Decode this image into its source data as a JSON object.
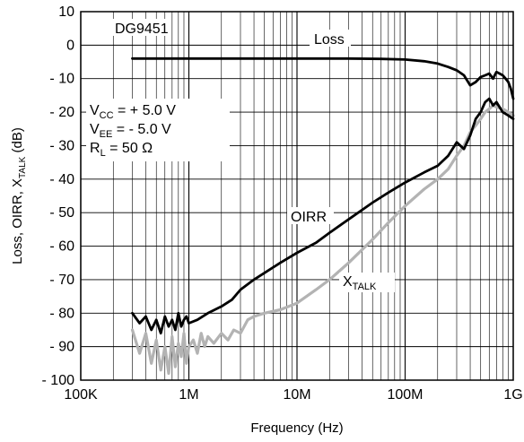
{
  "chart_data": {
    "type": "line",
    "title": "DG9451",
    "xlabel": "Frequency (Hz)",
    "ylabel": "Loss, OIRR, XTALK (dB)",
    "ylabel_parts": [
      "Loss, OIRR, X",
      "TALK",
      " (dB)"
    ],
    "xscale": "log",
    "xlim": [
      100000,
      1000000000
    ],
    "ylim": [
      -100,
      10
    ],
    "x_ticks": [
      100000,
      1000000,
      10000000,
      100000000,
      1000000000
    ],
    "x_tick_labels": [
      "100K",
      "1M",
      "10M",
      "100M",
      "1G"
    ],
    "y_ticks": [
      10,
      0,
      -10,
      -20,
      -30,
      -40,
      -50,
      -60,
      -70,
      -80,
      -90,
      -100
    ],
    "y_tick_labels": [
      "10",
      "0",
      "- 10",
      "- 20",
      "- 30",
      "- 40",
      "- 50",
      "- 60",
      "- 70",
      "- 80",
      "- 90",
      "- 100"
    ],
    "grid": true,
    "conditions": {
      "vcc": {
        "sym": "V",
        "sub": "CC",
        "text": " =  + 5.0 V"
      },
      "vee": {
        "sym": "V",
        "sub": "EE",
        "text": " = - 5.0 V"
      },
      "rl": {
        "sym": "R",
        "sub": "L",
        "text": " = 50 Ω"
      }
    },
    "series": [
      {
        "name": "Loss",
        "label_parts": [
          "Loss"
        ],
        "color": "#000000",
        "x": [
          300000,
          1000000,
          3000000,
          10000000,
          30000000,
          60000000,
          100000000,
          150000000,
          200000000,
          250000000,
          300000000,
          350000000,
          400000000,
          450000000,
          500000000,
          550000000,
          600000000,
          650000000,
          700000000,
          750000000,
          800000000,
          850000000,
          900000000,
          950000000,
          1000000000
        ],
        "y": [
          -4,
          -4,
          -4,
          -4,
          -4,
          -4.1,
          -4.3,
          -4.8,
          -5.5,
          -6.5,
          -7.5,
          -9,
          -12,
          -11,
          -9.5,
          -9,
          -8.5,
          -10,
          -8,
          -8.5,
          -9,
          -10,
          -11,
          -13,
          -16
        ]
      },
      {
        "name": "OIRR",
        "label_parts": [
          "OIRR"
        ],
        "color": "#000000",
        "x": [
          300000,
          350000,
          400000,
          450000,
          500000,
          550000,
          600000,
          650000,
          700000,
          750000,
          800000,
          850000,
          900000,
          950000,
          1000000,
          1200000,
          1500000,
          2000000,
          2500000,
          3000000,
          4000000,
          5000000,
          7000000,
          10000000,
          15000000,
          20000000,
          30000000,
          50000000,
          70000000,
          100000000,
          150000000,
          200000000,
          250000000,
          300000000,
          350000000,
          400000000,
          450000000,
          500000000,
          550000000,
          600000000,
          650000000,
          700000000,
          800000000,
          900000000,
          1000000000
        ],
        "y": [
          -80,
          -83,
          -81,
          -85,
          -82,
          -86,
          -81,
          -84,
          -82,
          -85,
          -80,
          -84,
          -82,
          -81,
          -83,
          -82,
          -80,
          -78,
          -76,
          -73,
          -70,
          -68,
          -65,
          -62,
          -59,
          -56,
          -52,
          -47,
          -44,
          -41,
          -38,
          -36,
          -33,
          -29,
          -31,
          -27,
          -22,
          -20,
          -17,
          -16,
          -18,
          -17,
          -20,
          -21,
          -22
        ]
      },
      {
        "name": "XTALK",
        "label_parts": [
          "X",
          "TALK"
        ],
        "color": "#b3b3b3",
        "x": [
          300000,
          350000,
          400000,
          450000,
          500000,
          550000,
          600000,
          650000,
          700000,
          750000,
          800000,
          850000,
          900000,
          950000,
          1000000,
          1100000,
          1200000,
          1300000,
          1400000,
          1500000,
          1700000,
          2000000,
          2300000,
          2600000,
          3000000,
          3500000,
          4000000,
          5000000,
          7000000,
          10000000,
          15000000,
          20000000,
          30000000,
          50000000,
          70000000,
          100000000,
          150000000,
          200000000,
          250000000,
          300000000,
          350000000,
          400000000,
          450000000,
          500000000,
          550000000,
          600000000,
          650000000,
          700000000,
          800000000,
          900000000,
          1000000000
        ],
        "y": [
          -85,
          -92,
          -86,
          -95,
          -88,
          -97,
          -90,
          -98,
          -87,
          -96,
          -89,
          -93,
          -86,
          -95,
          -90,
          -88,
          -92,
          -86,
          -90,
          -87,
          -89,
          -86,
          -88,
          -85,
          -86,
          -82,
          -81,
          -80,
          -79,
          -77,
          -73,
          -70,
          -65,
          -58,
          -53,
          -48,
          -43,
          -40,
          -37,
          -33,
          -30,
          -26,
          -24,
          -22,
          -20,
          -19,
          -18,
          -18.5,
          -19,
          -20,
          -21
        ]
      }
    ]
  }
}
